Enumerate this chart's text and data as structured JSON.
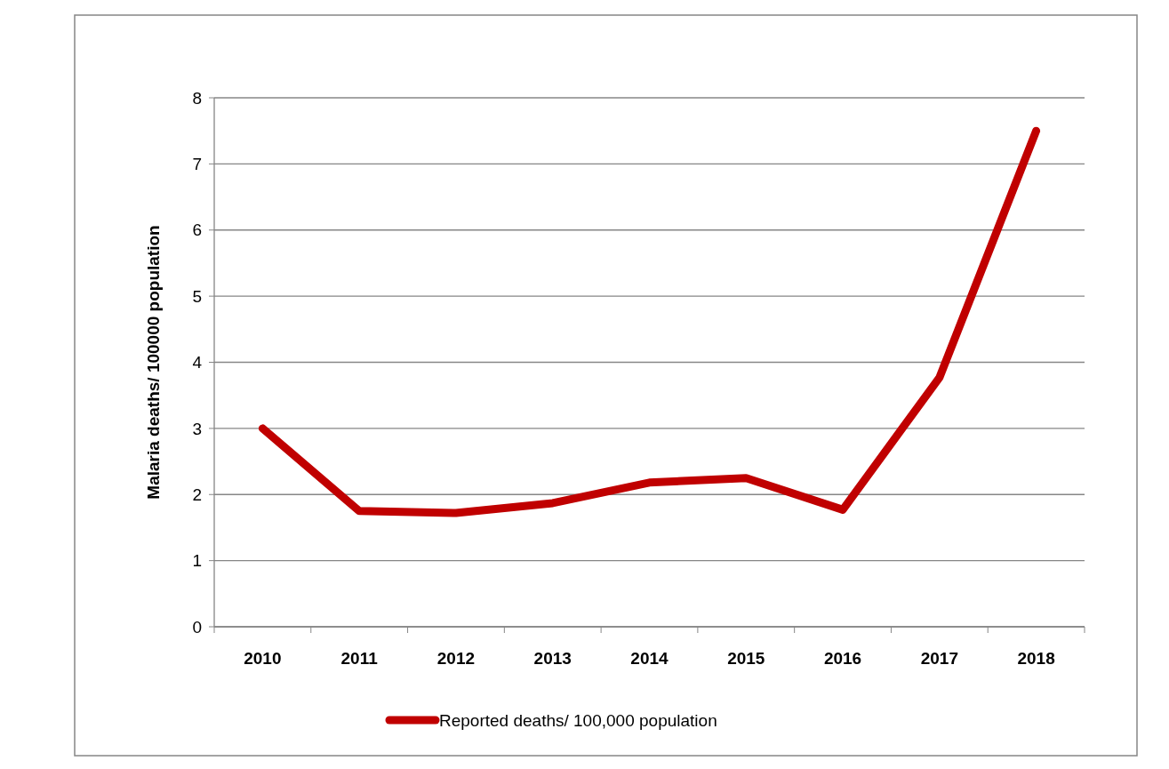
{
  "chart_data": {
    "type": "line",
    "ylabel": "Malaria deaths/ 100000 population",
    "categories": [
      "2010",
      "2011",
      "2012",
      "2013",
      "2014",
      "2015",
      "2016",
      "2017",
      "2018"
    ],
    "series": [
      {
        "name": "Reported deaths/ 100,000 population",
        "color": "#c00000",
        "values": [
          3.0,
          1.75,
          1.72,
          1.87,
          2.18,
          2.25,
          1.77,
          3.77,
          7.5
        ]
      }
    ],
    "ylim": [
      0,
      8
    ],
    "yticks": [
      0,
      1,
      2,
      3,
      4,
      5,
      6,
      7,
      8
    ],
    "grid": "y",
    "legend": "bottom",
    "marker": "none",
    "line_style": "solid"
  }
}
